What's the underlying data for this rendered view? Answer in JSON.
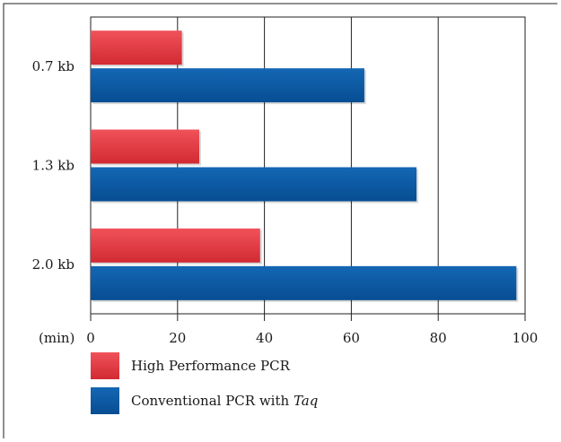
{
  "chart_data": {
    "type": "bar",
    "orientation": "horizontal",
    "categories": [
      "0.7 kb",
      "1.3 kb",
      "2.0 kb"
    ],
    "series": [
      {
        "name": "High Performance PCR",
        "values": [
          21,
          25,
          39
        ],
        "color": "#e8323c"
      },
      {
        "name": "Conventional PCR with Taq",
        "values": [
          63,
          75,
          98
        ],
        "color": "#0a58a3"
      }
    ],
    "legend": {
      "placement": "bottom-left",
      "entries": [
        {
          "text": "High Performance PCR"
        },
        {
          "text": "Conventional PCR with ",
          "italic": "Taq"
        }
      ]
    },
    "xlabel": "(min)",
    "ylabel": "",
    "title": "",
    "xlim": [
      0,
      100
    ],
    "xticks": [
      0,
      20,
      40,
      60,
      80,
      100
    ],
    "grid": "vertical"
  }
}
